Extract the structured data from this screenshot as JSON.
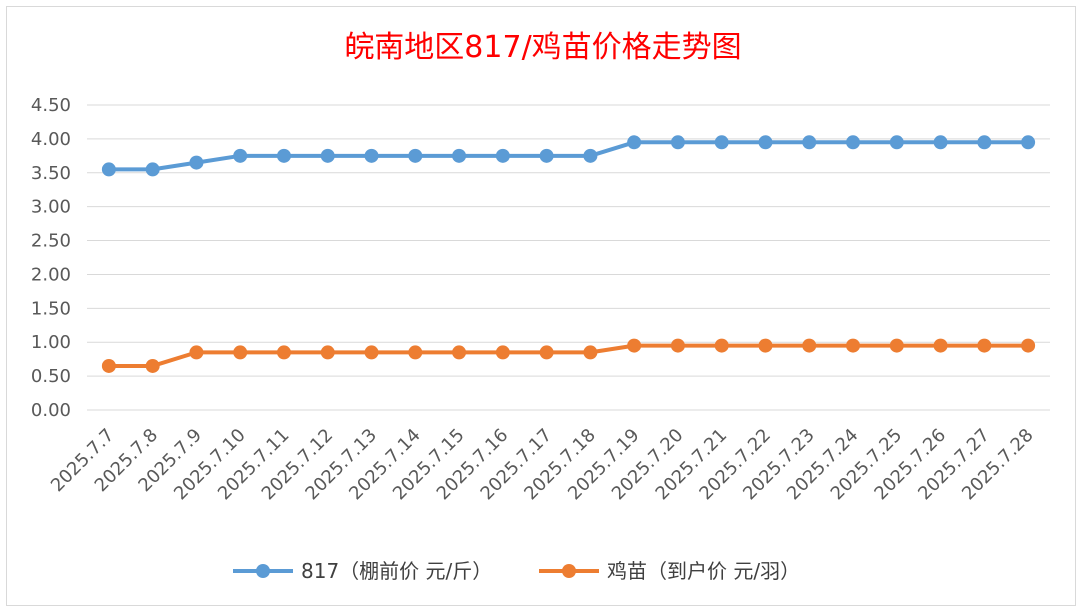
{
  "chart_data": {
    "type": "line",
    "title": "皖南地区817/鸡苗价格走势图",
    "title_color": "#ff0000",
    "categories": [
      "2025.7.7",
      "2025.7.8",
      "2025.7.9",
      "2025.7.10",
      "2025.7.11",
      "2025.7.12",
      "2025.7.13",
      "2025.7.14",
      "2025.7.15",
      "2025.7.16",
      "2025.7.17",
      "2025.7.18",
      "2025.7.19",
      "2025.7.20",
      "2025.7.21",
      "2025.7.22",
      "2025.7.23",
      "2025.7.24",
      "2025.7.25",
      "2025.7.26",
      "2025.7.27",
      "2025.7.28"
    ],
    "series": [
      {
        "name": "817（棚前价 元/斤）",
        "color": "#5b9bd5",
        "values": [
          3.55,
          3.55,
          3.65,
          3.75,
          3.75,
          3.75,
          3.75,
          3.75,
          3.75,
          3.75,
          3.75,
          3.75,
          3.95,
          3.95,
          3.95,
          3.95,
          3.95,
          3.95,
          3.95,
          3.95,
          3.95,
          3.95
        ]
      },
      {
        "name": "鸡苗（到户价 元/羽）",
        "color": "#ed7d31",
        "values": [
          0.65,
          0.65,
          0.85,
          0.85,
          0.85,
          0.85,
          0.85,
          0.85,
          0.85,
          0.85,
          0.85,
          0.85,
          0.95,
          0.95,
          0.95,
          0.95,
          0.95,
          0.95,
          0.95,
          0.95,
          0.95,
          0.95
        ]
      }
    ],
    "y_ticks": [
      "0.00",
      "0.50",
      "1.00",
      "1.50",
      "2.00",
      "2.50",
      "3.00",
      "3.50",
      "4.00",
      "4.50"
    ],
    "ylim": [
      0,
      4.5
    ],
    "grid": true,
    "gridline_color": "#d9d9d9",
    "axis_label_color": "#595959",
    "legend_position": "bottom"
  }
}
